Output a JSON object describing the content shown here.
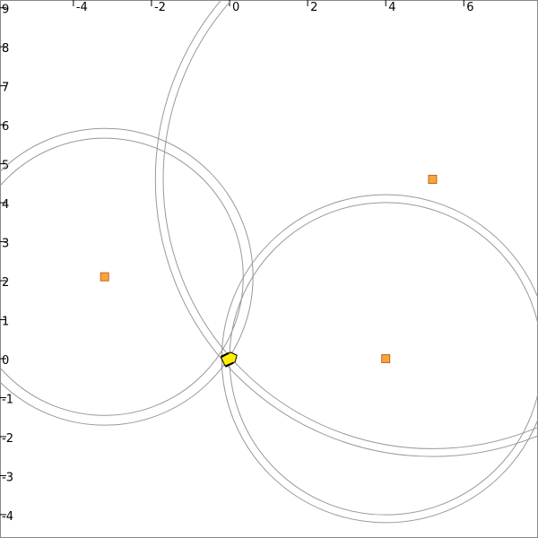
{
  "chart_data": {
    "type": "scatter",
    "xlim": [
      -5.88,
      7.9
    ],
    "ylim": [
      -4.6,
      9.2
    ],
    "xticks": [
      -4,
      -2,
      0,
      2,
      4,
      6
    ],
    "yticks": [
      -4,
      -3,
      -2,
      -1,
      0,
      1,
      2,
      3,
      4,
      5,
      6,
      7,
      8,
      9
    ],
    "landmarks": {
      "x": [
        4,
        -3.2,
        5.2
      ],
      "y": [
        0,
        2.1,
        4.6
      ],
      "color": "#f9a43a"
    },
    "ranges": [
      [
        4.0,
        4.2
      ],
      [
        3.55,
        3.8
      ],
      [
        6.9,
        7.1
      ]
    ],
    "robot": {
      "x": 0,
      "y": 0,
      "color": "#ffee00"
    }
  }
}
